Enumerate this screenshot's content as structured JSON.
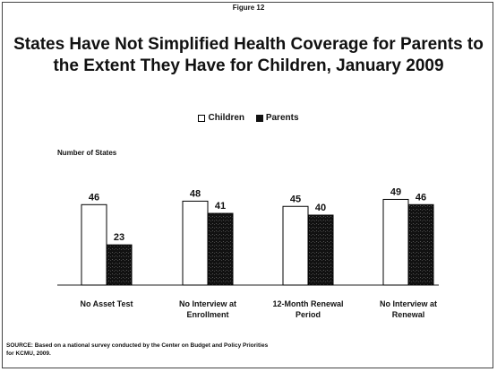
{
  "figure_label": "Figure 12",
  "source": "SOURCE: Based on a national survey conducted by the Center on Budget and Policy Priorities for KCMU, 2009.",
  "chart_data": {
    "type": "bar",
    "title": "States Have Not Simplified Health Coverage for Parents to the Extent They Have for Children, January 2009",
    "ylabel": "Number of States",
    "xlabel": "",
    "categories": [
      "No Asset Test",
      "No Interview at Enrollment",
      "12-Month Renewal Period",
      "No Interview at Renewal"
    ],
    "series": [
      {
        "name": "Children",
        "values": [
          46,
          48,
          45,
          49
        ],
        "color": "#ffffff"
      },
      {
        "name": "Parents",
        "values": [
          23,
          41,
          40,
          46
        ],
        "color": "#111111"
      }
    ],
    "ylim": [
      0,
      50
    ],
    "grid": false,
    "legend": "top"
  }
}
